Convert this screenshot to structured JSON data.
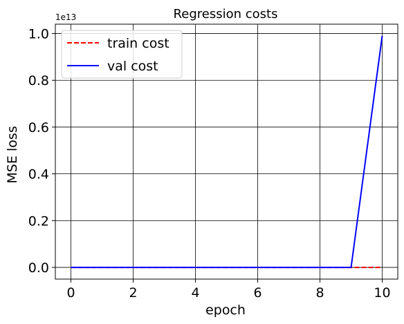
{
  "chart_data": {
    "type": "line",
    "title": "Regression costs",
    "xlabel": "epoch",
    "ylabel": "MSE loss",
    "y_offset_label": "1e13",
    "xlim": [
      -0.5,
      10.5
    ],
    "ylim": [
      -0.05,
      1.04
    ],
    "x_ticks": [
      0,
      2,
      4,
      6,
      8,
      10
    ],
    "x_tick_labels": [
      "0",
      "2",
      "4",
      "6",
      "8",
      "10"
    ],
    "y_ticks": [
      0.0,
      0.2,
      0.4,
      0.6,
      0.8,
      1.0
    ],
    "y_tick_labels": [
      "0.0",
      "0.2",
      "0.4",
      "0.6",
      "0.8",
      "1.0"
    ],
    "grid": true,
    "legend_position": "top-left",
    "x": [
      0,
      1,
      2,
      3,
      4,
      5,
      6,
      7,
      8,
      9,
      10
    ],
    "series": [
      {
        "name": "train cost",
        "color": "#ff0000",
        "style": "dashed",
        "values": [
          0,
          0,
          0,
          0,
          0,
          0,
          0,
          0,
          0,
          0,
          0
        ]
      },
      {
        "name": "val cost",
        "color": "#0000ff",
        "style": "solid",
        "values": [
          0,
          0,
          0,
          0,
          0,
          0,
          0,
          0,
          0,
          0,
          0.99
        ]
      }
    ]
  }
}
